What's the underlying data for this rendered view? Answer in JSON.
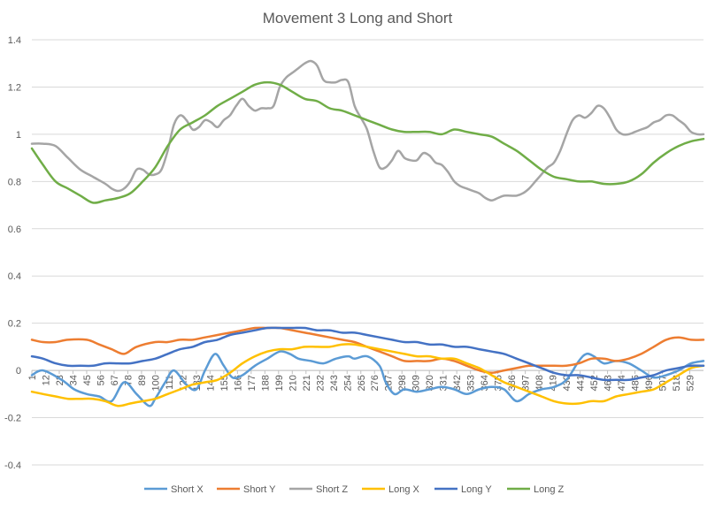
{
  "chart_data": {
    "type": "line",
    "title": "Movement 3 Long and Short",
    "xlabel": "",
    "ylabel": "",
    "ylim": [
      -0.4,
      1.4
    ],
    "y_ticks": [
      1.4,
      1.2,
      1,
      0.8,
      0.6,
      0.4,
      0.2,
      0,
      -0.2,
      -0.4
    ],
    "y_tick_labels": [
      "1.4",
      "1.2",
      "1",
      "0.8",
      "0.6",
      "0.4",
      "0.2",
      "0",
      "-0.2",
      "-0.4"
    ],
    "x_range": [
      1,
      540
    ],
    "x_tick_labels": [
      "1",
      "12",
      "23",
      "34",
      "45",
      "56",
      "67",
      "78",
      "89",
      "100",
      "111",
      "122",
      "133",
      "144",
      "155",
      "166",
      "177",
      "188",
      "199",
      "210",
      "221",
      "232",
      "243",
      "254",
      "265",
      "276",
      "287",
      "298",
      "309",
      "320",
      "331",
      "342",
      "353",
      "364",
      "375",
      "386",
      "397",
      "408",
      "419",
      "430",
      "441",
      "452",
      "463",
      "474",
      "485",
      "496",
      "507",
      "518",
      "529"
    ],
    "grid": true,
    "legend": "bottom",
    "series": [
      {
        "name": "Short X",
        "color": "#5B9BD5",
        "x": [
          1,
          10,
          25,
          35,
          45,
          55,
          65,
          75,
          85,
          95,
          100,
          108,
          115,
          125,
          133,
          140,
          148,
          155,
          162,
          170,
          180,
          190,
          200,
          208,
          215,
          225,
          235,
          245,
          255,
          260,
          270,
          280,
          285,
          292,
          300,
          310,
          320,
          330,
          340,
          350,
          360,
          370,
          380,
          390,
          400,
          410,
          420,
          430,
          440,
          446,
          452,
          460,
          470,
          480,
          490,
          500,
          510,
          520,
          530,
          540
        ],
        "y": [
          -0.02,
          0.0,
          -0.04,
          -0.08,
          -0.1,
          -0.11,
          -0.13,
          -0.05,
          -0.1,
          -0.15,
          -0.12,
          -0.05,
          0.0,
          -0.06,
          -0.08,
          0.0,
          0.07,
          0.02,
          -0.03,
          -0.02,
          0.02,
          0.05,
          0.08,
          0.07,
          0.05,
          0.04,
          0.03,
          0.05,
          0.06,
          0.05,
          0.06,
          0.02,
          -0.05,
          -0.1,
          -0.08,
          -0.09,
          -0.08,
          -0.07,
          -0.08,
          -0.1,
          -0.08,
          -0.07,
          -0.08,
          -0.13,
          -0.1,
          -0.08,
          -0.07,
          -0.04,
          0.04,
          0.07,
          0.06,
          0.03,
          0.04,
          0.03,
          0.0,
          -0.03,
          -0.02,
          0.0,
          0.03,
          0.04
        ]
      },
      {
        "name": "Short Y",
        "color": "#ED7D31",
        "x": [
          1,
          10,
          20,
          30,
          45,
          55,
          65,
          75,
          85,
          100,
          110,
          120,
          130,
          140,
          150,
          160,
          170,
          180,
          190,
          200,
          210,
          220,
          230,
          240,
          250,
          260,
          270,
          280,
          290,
          300,
          310,
          320,
          330,
          340,
          350,
          360,
          370,
          380,
          390,
          400,
          410,
          420,
          430,
          440,
          450,
          460,
          470,
          480,
          490,
          500,
          510,
          520,
          530,
          540
        ],
        "y": [
          0.13,
          0.12,
          0.12,
          0.13,
          0.13,
          0.11,
          0.09,
          0.07,
          0.1,
          0.12,
          0.12,
          0.13,
          0.13,
          0.14,
          0.15,
          0.16,
          0.17,
          0.18,
          0.18,
          0.18,
          0.17,
          0.16,
          0.15,
          0.14,
          0.13,
          0.12,
          0.1,
          0.08,
          0.06,
          0.04,
          0.04,
          0.04,
          0.05,
          0.04,
          0.02,
          0.0,
          -0.01,
          0.0,
          0.01,
          0.02,
          0.02,
          0.02,
          0.02,
          0.03,
          0.05,
          0.05,
          0.04,
          0.05,
          0.07,
          0.1,
          0.13,
          0.14,
          0.13,
          0.13
        ]
      },
      {
        "name": "Short Z",
        "color": "#A5A5A5",
        "x": [
          1,
          10,
          20,
          30,
          40,
          50,
          60,
          65,
          70,
          75,
          80,
          85,
          90,
          95,
          100,
          105,
          110,
          115,
          120,
          125,
          130,
          135,
          140,
          145,
          150,
          155,
          160,
          165,
          170,
          175,
          180,
          185,
          190,
          195,
          200,
          205,
          210,
          215,
          220,
          225,
          230,
          235,
          240,
          245,
          250,
          255,
          260,
          265,
          270,
          275,
          280,
          285,
          290,
          295,
          300,
          305,
          310,
          315,
          320,
          325,
          330,
          335,
          340,
          345,
          350,
          355,
          360,
          365,
          370,
          375,
          380,
          385,
          390,
          395,
          400,
          405,
          410,
          415,
          420,
          425,
          430,
          435,
          440,
          445,
          450,
          455,
          460,
          465,
          470,
          475,
          480,
          485,
          490,
          495,
          500,
          505,
          510,
          515,
          520,
          525,
          530,
          535,
          540
        ],
        "y": [
          0.96,
          0.96,
          0.95,
          0.9,
          0.85,
          0.82,
          0.79,
          0.77,
          0.76,
          0.77,
          0.8,
          0.85,
          0.85,
          0.83,
          0.83,
          0.85,
          0.93,
          1.04,
          1.08,
          1.06,
          1.02,
          1.03,
          1.06,
          1.05,
          1.03,
          1.06,
          1.08,
          1.12,
          1.15,
          1.12,
          1.1,
          1.11,
          1.11,
          1.12,
          1.2,
          1.24,
          1.26,
          1.28,
          1.3,
          1.31,
          1.29,
          1.23,
          1.22,
          1.22,
          1.23,
          1.22,
          1.12,
          1.07,
          1.02,
          0.93,
          0.86,
          0.86,
          0.89,
          0.93,
          0.9,
          0.89,
          0.89,
          0.92,
          0.91,
          0.88,
          0.87,
          0.84,
          0.8,
          0.78,
          0.77,
          0.76,
          0.75,
          0.73,
          0.72,
          0.73,
          0.74,
          0.74,
          0.74,
          0.75,
          0.77,
          0.8,
          0.83,
          0.86,
          0.88,
          0.93,
          1.0,
          1.06,
          1.08,
          1.07,
          1.09,
          1.12,
          1.11,
          1.07,
          1.02,
          1.0,
          1.0,
          1.01,
          1.02,
          1.03,
          1.05,
          1.06,
          1.08,
          1.08,
          1.06,
          1.04,
          1.01,
          1.0,
          1.0
        ]
      },
      {
        "name": "Long X",
        "color": "#FFC000",
        "x": [
          1,
          10,
          20,
          30,
          40,
          50,
          60,
          70,
          80,
          90,
          100,
          110,
          120,
          130,
          140,
          150,
          160,
          170,
          180,
          190,
          200,
          210,
          220,
          230,
          240,
          250,
          260,
          270,
          280,
          290,
          300,
          310,
          320,
          330,
          340,
          350,
          360,
          370,
          380,
          390,
          400,
          410,
          420,
          430,
          440,
          450,
          460,
          470,
          480,
          490,
          500,
          510,
          520,
          530,
          540
        ],
        "y": [
          -0.09,
          -0.1,
          -0.11,
          -0.12,
          -0.12,
          -0.12,
          -0.13,
          -0.15,
          -0.14,
          -0.13,
          -0.12,
          -0.1,
          -0.08,
          -0.06,
          -0.05,
          -0.04,
          -0.01,
          0.03,
          0.06,
          0.08,
          0.09,
          0.09,
          0.1,
          0.1,
          0.1,
          0.11,
          0.11,
          0.1,
          0.09,
          0.08,
          0.07,
          0.06,
          0.06,
          0.05,
          0.05,
          0.03,
          0.01,
          -0.02,
          -0.05,
          -0.07,
          -0.09,
          -0.11,
          -0.13,
          -0.14,
          -0.14,
          -0.13,
          -0.13,
          -0.11,
          -0.1,
          -0.09,
          -0.08,
          -0.05,
          -0.02,
          0.01,
          0.02
        ]
      },
      {
        "name": "Long Y",
        "color": "#4472C4",
        "x": [
          1,
          10,
          20,
          30,
          40,
          50,
          60,
          70,
          80,
          90,
          100,
          110,
          120,
          130,
          140,
          150,
          160,
          170,
          180,
          190,
          200,
          210,
          220,
          230,
          240,
          250,
          260,
          270,
          280,
          290,
          300,
          310,
          320,
          330,
          340,
          350,
          360,
          370,
          380,
          390,
          400,
          410,
          420,
          430,
          440,
          450,
          460,
          470,
          480,
          490,
          500,
          510,
          520,
          530,
          540
        ],
        "y": [
          0.06,
          0.05,
          0.03,
          0.02,
          0.02,
          0.02,
          0.03,
          0.03,
          0.03,
          0.04,
          0.05,
          0.07,
          0.09,
          0.1,
          0.12,
          0.13,
          0.15,
          0.16,
          0.17,
          0.18,
          0.18,
          0.18,
          0.18,
          0.17,
          0.17,
          0.16,
          0.16,
          0.15,
          0.14,
          0.13,
          0.12,
          0.12,
          0.11,
          0.11,
          0.1,
          0.1,
          0.09,
          0.08,
          0.07,
          0.05,
          0.03,
          0.01,
          -0.01,
          -0.02,
          -0.02,
          -0.03,
          -0.04,
          -0.04,
          -0.04,
          -0.03,
          -0.02,
          0.0,
          0.01,
          0.02,
          0.02
        ]
      },
      {
        "name": "Long Z",
        "color": "#70AD47",
        "x": [
          1,
          10,
          20,
          30,
          40,
          50,
          60,
          70,
          80,
          90,
          100,
          110,
          120,
          130,
          140,
          150,
          160,
          170,
          180,
          190,
          200,
          210,
          220,
          230,
          240,
          250,
          260,
          270,
          280,
          290,
          300,
          310,
          320,
          330,
          340,
          350,
          360,
          370,
          380,
          390,
          400,
          410,
          420,
          430,
          440,
          450,
          460,
          470,
          480,
          490,
          500,
          510,
          520,
          530,
          540
        ],
        "y": [
          0.94,
          0.87,
          0.8,
          0.77,
          0.74,
          0.71,
          0.72,
          0.73,
          0.75,
          0.8,
          0.86,
          0.95,
          1.02,
          1.05,
          1.08,
          1.12,
          1.15,
          1.18,
          1.21,
          1.22,
          1.21,
          1.18,
          1.15,
          1.14,
          1.11,
          1.1,
          1.08,
          1.06,
          1.04,
          1.02,
          1.01,
          1.01,
          1.01,
          1.0,
          1.02,
          1.01,
          1.0,
          0.99,
          0.96,
          0.93,
          0.89,
          0.85,
          0.82,
          0.81,
          0.8,
          0.8,
          0.79,
          0.79,
          0.8,
          0.83,
          0.88,
          0.92,
          0.95,
          0.97,
          0.98
        ]
      }
    ]
  }
}
